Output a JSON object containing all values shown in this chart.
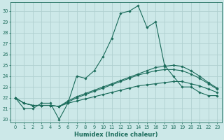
{
  "xlabel": "Humidex (Indice chaleur)",
  "bg_color": "#cce8e8",
  "grid_color": "#b0d0d0",
  "line_color": "#1a6b5a",
  "xlim": [
    -0.5,
    23.5
  ],
  "ylim": [
    19.7,
    30.8
  ],
  "yticks": [
    20,
    21,
    22,
    23,
    24,
    25,
    26,
    27,
    28,
    29,
    30
  ],
  "xticks": [
    0,
    1,
    2,
    3,
    4,
    5,
    6,
    7,
    8,
    9,
    10,
    11,
    12,
    13,
    14,
    15,
    16,
    17,
    18,
    19,
    20,
    21,
    22,
    23
  ],
  "series": [
    {
      "x": [
        0,
        1,
        2,
        3,
        4,
        5,
        6,
        7,
        8,
        9,
        10,
        11,
        12,
        13,
        14,
        15,
        16,
        17,
        18,
        19,
        20,
        21,
        22,
        23
      ],
      "y": [
        22.0,
        21.0,
        21.0,
        21.5,
        21.5,
        20.0,
        21.5,
        24.0,
        23.8,
        24.5,
        25.8,
        27.5,
        29.8,
        30.0,
        30.5,
        28.5,
        29.0,
        25.0,
        24.0,
        23.0,
        23.0,
        22.5,
        22.2,
        22.2
      ]
    },
    {
      "x": [
        0,
        1,
        2,
        3,
        4,
        5,
        6,
        7,
        8,
        9,
        10,
        11,
        12,
        13,
        14,
        15,
        16,
        17,
        18,
        19,
        20,
        21,
        22,
        23
      ],
      "y": [
        22.0,
        21.5,
        21.3,
        21.3,
        21.3,
        21.2,
        21.5,
        21.7,
        21.9,
        22.1,
        22.3,
        22.5,
        22.7,
        22.9,
        23.1,
        23.2,
        23.3,
        23.4,
        23.5,
        23.5,
        23.3,
        23.1,
        22.8,
        22.5
      ]
    },
    {
      "x": [
        0,
        1,
        2,
        3,
        4,
        5,
        6,
        7,
        8,
        9,
        10,
        11,
        12,
        13,
        14,
        15,
        16,
        17,
        18,
        19,
        20,
        21,
        22,
        23
      ],
      "y": [
        22.0,
        21.5,
        21.3,
        21.3,
        21.3,
        21.2,
        21.6,
        22.0,
        22.3,
        22.6,
        22.9,
        23.2,
        23.5,
        23.8,
        24.1,
        24.3,
        24.5,
        24.6,
        24.6,
        24.5,
        24.2,
        23.8,
        23.3,
        22.8
      ]
    },
    {
      "x": [
        0,
        1,
        2,
        3,
        4,
        5,
        6,
        7,
        8,
        9,
        10,
        11,
        12,
        13,
        14,
        15,
        16,
        17,
        18,
        19,
        20,
        21,
        22,
        23
      ],
      "y": [
        22.0,
        21.5,
        21.3,
        21.3,
        21.3,
        21.2,
        21.7,
        22.1,
        22.4,
        22.7,
        23.0,
        23.3,
        23.6,
        23.9,
        24.2,
        24.5,
        24.8,
        24.9,
        25.0,
        24.9,
        24.5,
        24.0,
        23.4,
        22.9
      ]
    }
  ]
}
